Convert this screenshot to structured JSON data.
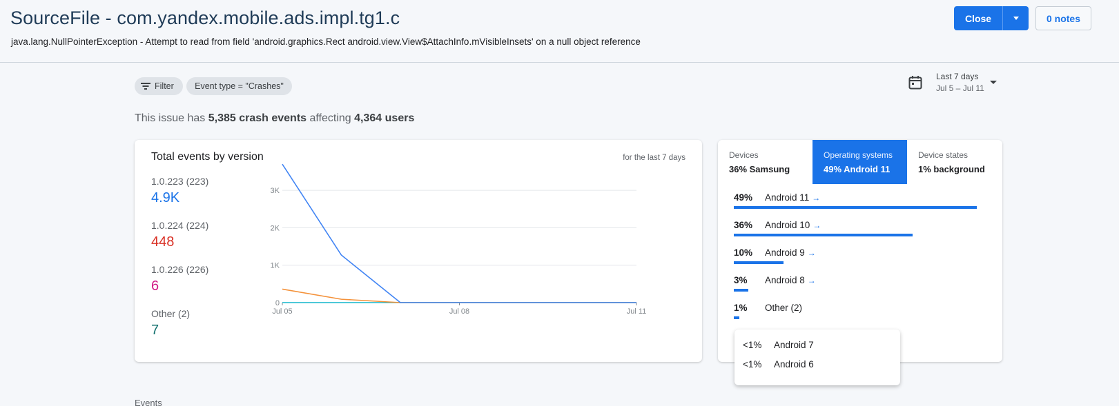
{
  "header": {
    "title": "SourceFile - com.yandex.mobile.ads.impl.tg1.c",
    "subtitle": "java.lang.NullPointerException - Attempt to read from field 'android.graphics.Rect android.view.View$AttachInfo.mVisibleInsets' on a null object reference",
    "close_label": "Close",
    "notes_label": "0 notes"
  },
  "filters": {
    "filter_label": "Filter",
    "event_type_chip": "Event type = \"Crashes\""
  },
  "date_picker": {
    "label": "Last 7 days",
    "range": "Jul 5 – Jul 11"
  },
  "summary": {
    "prefix": "This issue has",
    "crash_events": "5,385 crash events",
    "middle": "affecting",
    "users": "4,364 users"
  },
  "events_card": {
    "title": "Total events by version",
    "note": "for the last 7 days",
    "versions": [
      {
        "label": "1.0.223 (223)",
        "value": "4.9K",
        "color": "#1a73e8"
      },
      {
        "label": "1.0.224 (224)",
        "value": "448",
        "color": "#d93025"
      },
      {
        "label": "1.0.226 (226)",
        "value": "6",
        "color": "#d01884"
      },
      {
        "label": "Other (2)",
        "value": "7",
        "color": "#12706e"
      }
    ]
  },
  "chart_data": {
    "type": "line",
    "title": "Total events by version",
    "xlabel": "",
    "ylabel": "",
    "x": [
      "Jul 05",
      "Jul 06",
      "Jul 07",
      "Jul 08",
      "Jul 09",
      "Jul 10",
      "Jul 11"
    ],
    "x_tick_labels": [
      "Jul 05",
      "Jul 08",
      "Jul 11"
    ],
    "y_tick_labels": [
      "0",
      "1K",
      "2K",
      "3K"
    ],
    "ylim": [
      0,
      3500
    ],
    "grid": true,
    "series": [
      {
        "color": "#4285f4",
        "values": [
          3700,
          1270,
          0,
          0,
          0,
          0,
          0
        ]
      },
      {
        "color": "#f4923b",
        "values": [
          360,
          90,
          0,
          0,
          0,
          0,
          0
        ]
      },
      {
        "color": "#12b5cb",
        "values": [
          0,
          0,
          0,
          0,
          0,
          0,
          0
        ]
      }
    ]
  },
  "breakdown": {
    "tabs": [
      {
        "label": "Devices",
        "value": "36% Samsung"
      },
      {
        "label": "Operating systems",
        "value": "49% Android 11"
      },
      {
        "label": "Device states",
        "value": "1% background"
      }
    ],
    "rows": [
      {
        "pct": "49%",
        "name": "Android 11",
        "fraction": 1.0,
        "arrow": true
      },
      {
        "pct": "36%",
        "name": "Android 10",
        "fraction": 0.735,
        "arrow": true
      },
      {
        "pct": "10%",
        "name": "Android 9",
        "fraction": 0.204,
        "arrow": true
      },
      {
        "pct": "3%",
        "name": "Android 8",
        "fraction": 0.061,
        "arrow": true
      },
      {
        "pct": "1%",
        "name": "Other (2)",
        "fraction": 0.02,
        "arrow": false
      }
    ],
    "popup": [
      {
        "pct": "<1%",
        "name": "Android 7"
      },
      {
        "pct": "<1%",
        "name": "Android 6"
      }
    ]
  },
  "events_heading": "Events"
}
